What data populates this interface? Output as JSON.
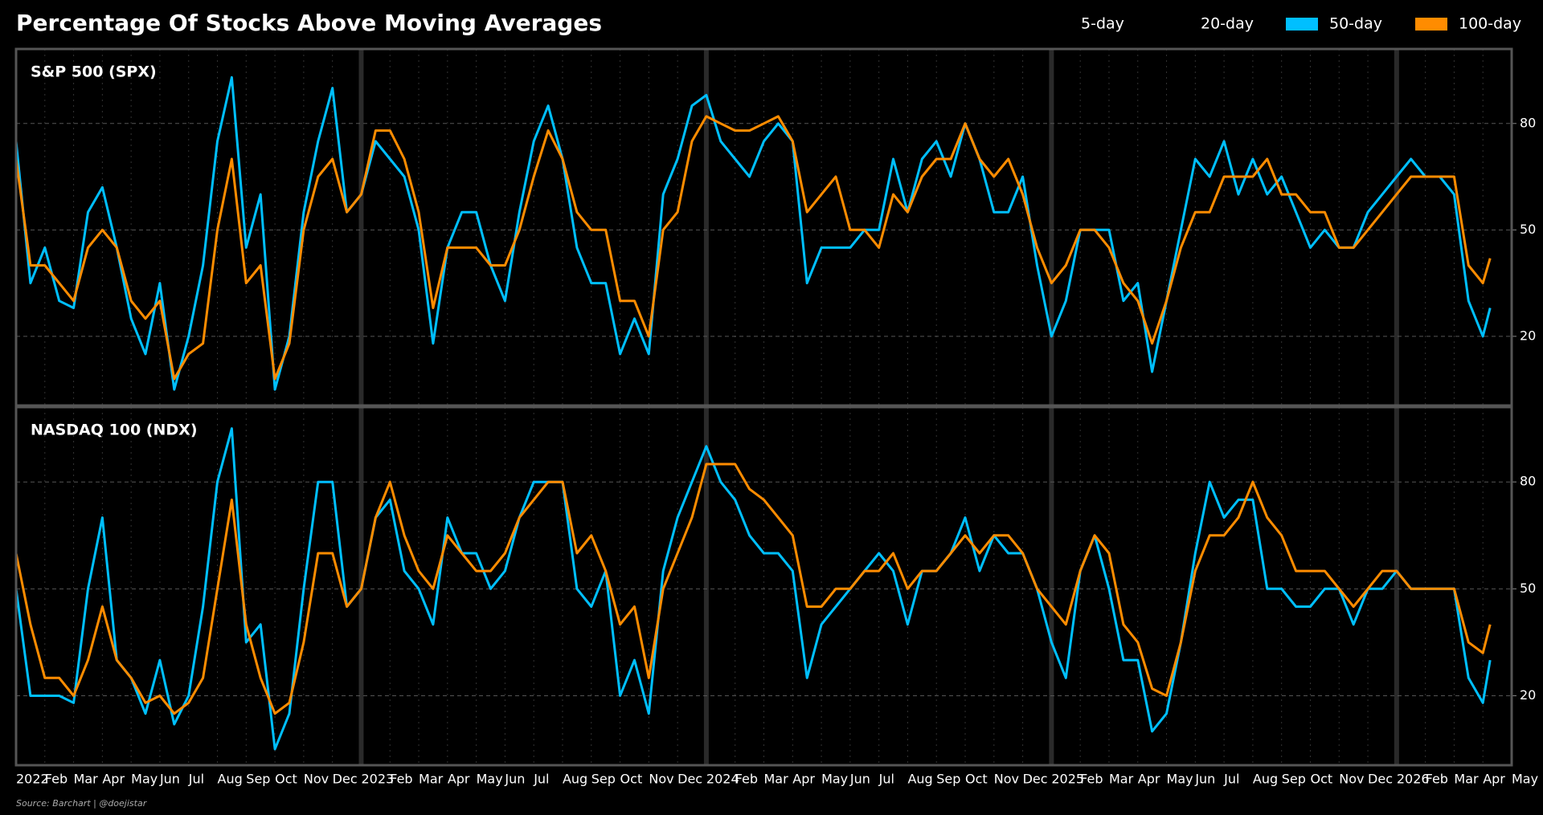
{
  "title": "Percentage Of Stocks Above Moving Averages",
  "inactive_legend": [
    "5-day",
    "20-day"
  ],
  "source": "Source: Barchart | @doejistar",
  "chart_data": [
    {
      "type": "line",
      "title": "S&P 500 (SPX)",
      "x": [
        0,
        0.5,
        1,
        1.5,
        2,
        2.5,
        3,
        3.5,
        4,
        4.5,
        5,
        5.5,
        6,
        6.5,
        7,
        7.5,
        8,
        8.5,
        9,
        9.5,
        10,
        10.5,
        11,
        11.5,
        12,
        12.5,
        13,
        13.5,
        14,
        14.5,
        15,
        15.5,
        16,
        16.5,
        17,
        17.5,
        18,
        18.5,
        19,
        19.5,
        20,
        20.5,
        21,
        21.5,
        22,
        22.5,
        23,
        23.5,
        24,
        24.5,
        25,
        25.5,
        26,
        26.5,
        27,
        27.5,
        28,
        28.5,
        29,
        29.5,
        30,
        30.5,
        31,
        31.5,
        32,
        32.5,
        33,
        33.5,
        34,
        34.5,
        35,
        35.5,
        36,
        36.5,
        37,
        37.5,
        38,
        38.5,
        39,
        39.5,
        40,
        40.5,
        41,
        41.5,
        42,
        42.5,
        43,
        43.5,
        44,
        44.5,
        45,
        45.5,
        46,
        46.5,
        47,
        47.5,
        48,
        48.5,
        49,
        49.5,
        50,
        50.5,
        51,
        51.25
      ],
      "series": [
        {
          "name": "50-day",
          "color": "#00bfff",
          "values": [
            75,
            35,
            45,
            30,
            28,
            55,
            62,
            45,
            25,
            15,
            35,
            5,
            20,
            40,
            75,
            93,
            45,
            60,
            5,
            20,
            55,
            75,
            90,
            55,
            60,
            75,
            70,
            65,
            50,
            18,
            45,
            55,
            55,
            40,
            30,
            55,
            75,
            85,
            70,
            45,
            35,
            35,
            15,
            25,
            15,
            60,
            70,
            85,
            88,
            75,
            70,
            65,
            75,
            80,
            75,
            35,
            45,
            45,
            45,
            50,
            50,
            70,
            55,
            70,
            75,
            65,
            80,
            70,
            55,
            55,
            65,
            40,
            20,
            30,
            50,
            50,
            50,
            30,
            35,
            10,
            30,
            50,
            70,
            65,
            75,
            60,
            70,
            60,
            65,
            55,
            45,
            50,
            45,
            45,
            55,
            60,
            65,
            70,
            65,
            65,
            60,
            30,
            20,
            28
          ]
        },
        {
          "name": "100-day",
          "color": "#ff8c00",
          "values": [
            70,
            40,
            40,
            35,
            30,
            45,
            50,
            45,
            30,
            25,
            30,
            8,
            15,
            18,
            50,
            70,
            35,
            40,
            8,
            18,
            50,
            65,
            70,
            55,
            60,
            78,
            78,
            70,
            55,
            28,
            45,
            45,
            45,
            40,
            40,
            50,
            65,
            78,
            70,
            55,
            50,
            50,
            30,
            30,
            20,
            50,
            55,
            75,
            82,
            80,
            78,
            78,
            80,
            82,
            75,
            55,
            60,
            65,
            50,
            50,
            45,
            60,
            55,
            65,
            70,
            70,
            80,
            70,
            65,
            70,
            60,
            45,
            35,
            40,
            50,
            50,
            45,
            35,
            30,
            18,
            30,
            45,
            55,
            55,
            65,
            65,
            65,
            70,
            60,
            60,
            55,
            55,
            45,
            45,
            50,
            55,
            60,
            65,
            65,
            65,
            65,
            40,
            35,
            42
          ]
        }
      ],
      "xlim": [
        0,
        52
      ],
      "ylim": [
        0.5,
        101
      ],
      "yticks": [
        20,
        50,
        80
      ],
      "grid": true
    },
    {
      "type": "line",
      "title": "NASDAQ 100 (NDX)",
      "x": [
        0,
        0.5,
        1,
        1.5,
        2,
        2.5,
        3,
        3.5,
        4,
        4.5,
        5,
        5.5,
        6,
        6.5,
        7,
        7.5,
        8,
        8.5,
        9,
        9.5,
        10,
        10.5,
        11,
        11.5,
        12,
        12.5,
        13,
        13.5,
        14,
        14.5,
        15,
        15.5,
        16,
        16.5,
        17,
        17.5,
        18,
        18.5,
        19,
        19.5,
        20,
        20.5,
        21,
        21.5,
        22,
        22.5,
        23,
        23.5,
        24,
        24.5,
        25,
        25.5,
        26,
        26.5,
        27,
        27.5,
        28,
        28.5,
        29,
        29.5,
        30,
        30.5,
        31,
        31.5,
        32,
        32.5,
        33,
        33.5,
        34,
        34.5,
        35,
        35.5,
        36,
        36.5,
        37,
        37.5,
        38,
        38.5,
        39,
        39.5,
        40,
        40.5,
        41,
        41.5,
        42,
        42.5,
        43,
        43.5,
        44,
        44.5,
        45,
        45.5,
        46,
        46.5,
        47,
        47.5,
        48,
        48.5,
        49,
        49.5,
        50,
        50.5,
        51,
        51.25
      ],
      "series": [
        {
          "name": "50-day",
          "color": "#00bfff",
          "values": [
            50,
            20,
            20,
            20,
            18,
            50,
            70,
            30,
            25,
            15,
            30,
            12,
            20,
            45,
            80,
            95,
            35,
            40,
            5,
            15,
            50,
            80,
            80,
            45,
            50,
            70,
            75,
            55,
            50,
            40,
            70,
            60,
            60,
            50,
            55,
            70,
            80,
            80,
            80,
            50,
            45,
            55,
            20,
            30,
            15,
            55,
            70,
            80,
            90,
            80,
            75,
            65,
            60,
            60,
            55,
            25,
            40,
            45,
            50,
            55,
            60,
            55,
            40,
            55,
            55,
            60,
            70,
            55,
            65,
            60,
            60,
            50,
            35,
            25,
            55,
            65,
            50,
            30,
            30,
            10,
            15,
            35,
            60,
            80,
            70,
            75,
            75,
            50,
            50,
            45,
            45,
            50,
            50,
            40,
            50,
            50,
            55,
            50,
            50,
            50,
            50,
            25,
            18,
            30
          ]
        },
        {
          "name": "100-day",
          "color": "#ff8c00",
          "values": [
            60,
            40,
            25,
            25,
            20,
            30,
            45,
            30,
            25,
            18,
            20,
            15,
            18,
            25,
            50,
            75,
            40,
            25,
            15,
            18,
            35,
            60,
            60,
            45,
            50,
            70,
            80,
            65,
            55,
            50,
            65,
            60,
            55,
            55,
            60,
            70,
            75,
            80,
            80,
            60,
            65,
            55,
            40,
            45,
            25,
            50,
            60,
            70,
            85,
            85,
            85,
            78,
            75,
            70,
            65,
            45,
            45,
            50,
            50,
            55,
            55,
            60,
            50,
            55,
            55,
            60,
            65,
            60,
            65,
            65,
            60,
            50,
            45,
            40,
            55,
            65,
            60,
            40,
            35,
            22,
            20,
            35,
            55,
            65,
            65,
            70,
            80,
            70,
            65,
            55,
            55,
            55,
            50,
            45,
            50,
            55,
            55,
            50,
            50,
            50,
            50,
            35,
            32,
            40
          ]
        }
      ],
      "xlim": [
        0,
        52
      ],
      "ylim": [
        0.5,
        101
      ],
      "yticks": [
        20,
        50,
        80
      ],
      "grid": true,
      "xticks": [
        {
          "value": 0,
          "label": "2022"
        },
        {
          "value": 1,
          "label": "Feb"
        },
        {
          "value": 2,
          "label": "Mar"
        },
        {
          "value": 3,
          "label": "Apr"
        },
        {
          "value": 4,
          "label": "May"
        },
        {
          "value": 5,
          "label": "Jun"
        },
        {
          "value": 6,
          "label": "Jul"
        },
        {
          "value": 7,
          "label": "Aug"
        },
        {
          "value": 8,
          "label": "Sep"
        },
        {
          "value": 9,
          "label": "Oct"
        },
        {
          "value": 10,
          "label": "Nov"
        },
        {
          "value": 11,
          "label": "Dec"
        },
        {
          "value": 12,
          "label": "2023"
        },
        {
          "value": 13,
          "label": "Feb"
        },
        {
          "value": 14,
          "label": "Mar"
        },
        {
          "value": 15,
          "label": "Apr"
        },
        {
          "value": 16,
          "label": "May"
        },
        {
          "value": 17,
          "label": "Jun"
        },
        {
          "value": 18,
          "label": "Jul"
        },
        {
          "value": 19,
          "label": "Aug"
        },
        {
          "value": 20,
          "label": "Sep"
        },
        {
          "value": 21,
          "label": "Oct"
        },
        {
          "value": 22,
          "label": "Nov"
        },
        {
          "value": 23,
          "label": "Dec"
        },
        {
          "value": 24,
          "label": "2024"
        },
        {
          "value": 25,
          "label": "Feb"
        },
        {
          "value": 26,
          "label": "Mar"
        },
        {
          "value": 27,
          "label": "Apr"
        },
        {
          "value": 28,
          "label": "May"
        },
        {
          "value": 29,
          "label": "Jun"
        },
        {
          "value": 30,
          "label": "Jul"
        },
        {
          "value": 31,
          "label": "Aug"
        },
        {
          "value": 32,
          "label": "Sep"
        },
        {
          "value": 33,
          "label": "Oct"
        },
        {
          "value": 34,
          "label": "Nov"
        },
        {
          "value": 35,
          "label": "Dec"
        },
        {
          "value": 36,
          "label": "2025"
        },
        {
          "value": 37,
          "label": "Feb"
        },
        {
          "value": 38,
          "label": "Mar"
        },
        {
          "value": 39,
          "label": "Apr"
        },
        {
          "value": 40,
          "label": "May"
        },
        {
          "value": 41,
          "label": "Jun"
        },
        {
          "value": 42,
          "label": "Jul"
        },
        {
          "value": 43,
          "label": "Aug"
        },
        {
          "value": 44,
          "label": "Sep"
        },
        {
          "value": 45,
          "label": "Oct"
        },
        {
          "value": 46,
          "label": "Nov"
        },
        {
          "value": 47,
          "label": "Dec"
        },
        {
          "value": 48,
          "label": "2026"
        },
        {
          "value": 49,
          "label": "Feb"
        },
        {
          "value": 50,
          "label": "Mar"
        },
        {
          "value": 51,
          "label": "Apr"
        },
        {
          "value": 52,
          "label": "May"
        }
      ]
    }
  ]
}
